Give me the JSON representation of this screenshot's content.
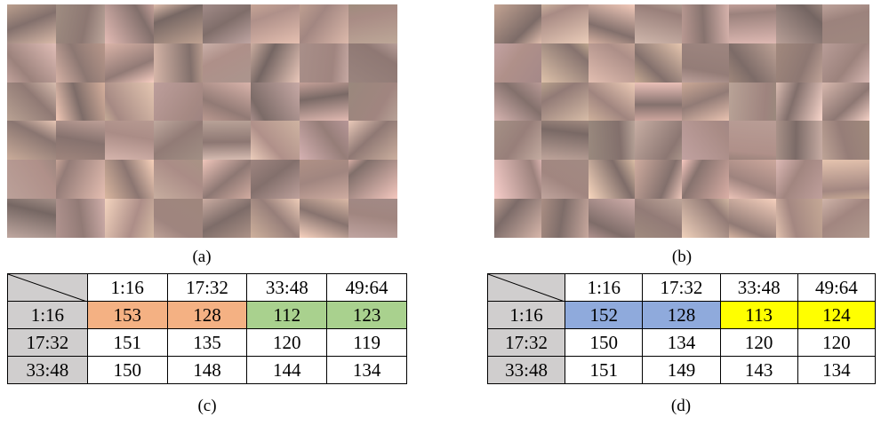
{
  "panels": [
    {
      "image_caption": "(a)",
      "table_caption": "(c)",
      "table": {
        "columns": [
          "1:16",
          "17:32",
          "33:48",
          "49:64"
        ],
        "rows": [
          {
            "label": "1:16",
            "cells": [
              153,
              128,
              112,
              123
            ]
          },
          {
            "label": "17:32",
            "cells": [
              151,
              135,
              120,
              119
            ]
          },
          {
            "label": "33:48",
            "cells": [
              150,
              148,
              144,
              134
            ]
          }
        ]
      }
    },
    {
      "image_caption": "(b)",
      "table_caption": "(d)",
      "table": {
        "columns": [
          "1:16",
          "17:32",
          "33:48",
          "49:64"
        ],
        "rows": [
          {
            "label": "1:16",
            "cells": [
              152,
              128,
              113,
              124
            ]
          },
          {
            "label": "17:32",
            "cells": [
              150,
              134,
              120,
              120
            ]
          },
          {
            "label": "33:48",
            "cells": [
              151,
              149,
              143,
              134
            ]
          }
        ]
      }
    }
  ]
}
